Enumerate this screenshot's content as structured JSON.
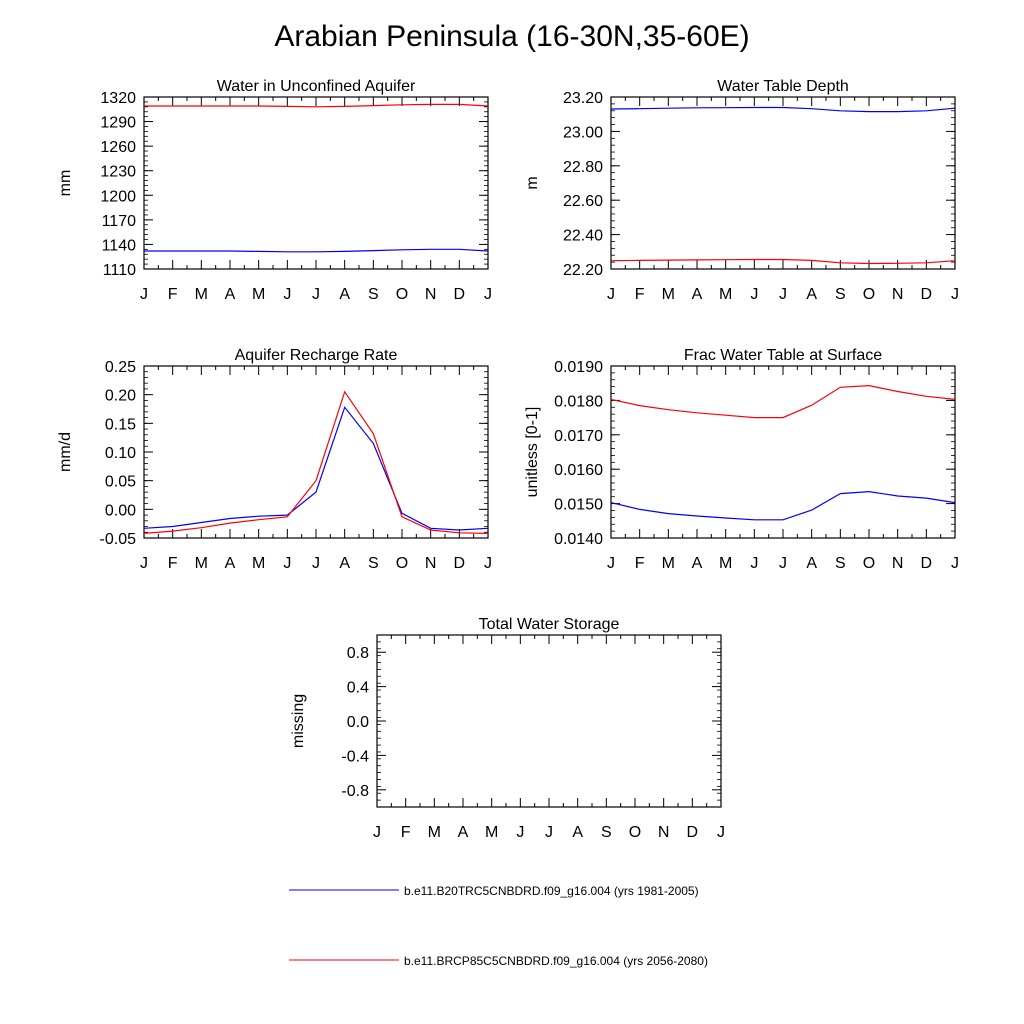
{
  "title": "Arabian Peninsula (16-30N,35-60E)",
  "colors": {
    "series_1": "#0000ff",
    "series_2": "#ff0000",
    "axis": "#000000"
  },
  "legend": [
    {
      "label": "b.e11.B20TRC5CNBDRD.f09_g16.004 (yrs 1981-2005)",
      "color": "#0000ff"
    },
    {
      "label": "b.e11.BRCP85C5CNBDRD.f09_g16.004 (yrs 2056-2080)",
      "color": "#ff0000"
    }
  ],
  "chart_data": [
    {
      "id": "unconfined",
      "type": "line",
      "title": "Water in Unconfined Aquifer",
      "ylabel": "mm",
      "xlabel": "",
      "categories": [
        "J",
        "F",
        "M",
        "A",
        "M",
        "J",
        "J",
        "A",
        "S",
        "O",
        "N",
        "D",
        "J"
      ],
      "yticks": [
        "1320",
        "1290",
        "1260",
        "1230",
        "1200",
        "1170",
        "1140",
        "1110"
      ],
      "ylim": [
        1110,
        1320
      ],
      "series": [
        {
          "name": "b.e11.B20TRC5CNBDRD.f09_g16.004 (yrs 1981-2005)",
          "values": [
            1132,
            1132,
            1132,
            1132,
            1131.5,
            1131,
            1131,
            1131.5,
            1132.5,
            1133.5,
            1134,
            1134,
            1132
          ]
        },
        {
          "name": "b.e11.BRCP85C5CNBDRD.f09_g16.004 (yrs 2056-2080)",
          "values": [
            1309,
            1309,
            1309,
            1309,
            1309,
            1308.5,
            1308,
            1308.5,
            1309.5,
            1310.5,
            1311,
            1311,
            1309
          ]
        }
      ]
    },
    {
      "id": "depth",
      "type": "line",
      "title": "Water Table Depth",
      "ylabel": "m",
      "xlabel": "",
      "categories": [
        "J",
        "F",
        "M",
        "A",
        "M",
        "J",
        "J",
        "A",
        "S",
        "O",
        "N",
        "D",
        "J"
      ],
      "yticks": [
        "23.20",
        "23.00",
        "22.80",
        "22.60",
        "22.40",
        "22.20"
      ],
      "ylim": [
        22.2,
        23.2
      ],
      "series": [
        {
          "name": "b.e11.B20TRC5CNBDRD.f09_g16.004 (yrs 1981-2005)",
          "values": [
            23.13,
            23.132,
            23.135,
            23.137,
            23.138,
            23.139,
            23.139,
            23.132,
            23.12,
            23.115,
            23.115,
            23.12,
            23.135
          ]
        },
        {
          "name": "b.e11.BRCP85C5CNBDRD.f09_g16.004 (yrs 2056-2080)",
          "values": [
            22.248,
            22.25,
            22.252,
            22.253,
            22.254,
            22.255,
            22.255,
            22.25,
            22.236,
            22.232,
            22.233,
            22.236,
            22.248
          ]
        }
      ]
    },
    {
      "id": "recharge",
      "type": "line",
      "title": "Aquifer Recharge Rate",
      "ylabel": "mm/d",
      "xlabel": "",
      "categories": [
        "J",
        "F",
        "M",
        "A",
        "M",
        "J",
        "J",
        "A",
        "S",
        "O",
        "N",
        "D",
        "J"
      ],
      "yticks": [
        "0.25",
        "0.20",
        "0.15",
        "0.10",
        "0.05",
        "0.00",
        "-0.05"
      ],
      "ylim": [
        -0.05,
        0.25
      ],
      "series": [
        {
          "name": "b.e11.B20TRC5CNBDRD.f09_g16.004 (yrs 1981-2005)",
          "values": [
            -0.033,
            -0.03,
            -0.023,
            -0.016,
            -0.012,
            -0.01,
            0.03,
            0.178,
            0.115,
            -0.007,
            -0.033,
            -0.036,
            -0.033
          ]
        },
        {
          "name": "b.e11.BRCP85C5CNBDRD.f09_g16.004 (yrs 2056-2080)",
          "values": [
            -0.042,
            -0.038,
            -0.032,
            -0.024,
            -0.018,
            -0.013,
            0.05,
            0.205,
            0.132,
            -0.013,
            -0.036,
            -0.041,
            -0.042
          ]
        }
      ]
    },
    {
      "id": "frac",
      "type": "line",
      "title": "Frac Water Table at Surface",
      "ylabel": "unitless [0-1]",
      "xlabel": "",
      "categories": [
        "J",
        "F",
        "M",
        "A",
        "M",
        "J",
        "J",
        "A",
        "S",
        "O",
        "N",
        "D",
        "J"
      ],
      "yticks": [
        "0.0190",
        "0.0180",
        "0.0170",
        "0.0160",
        "0.0150",
        "0.0140"
      ],
      "ylim": [
        0.014,
        0.019
      ],
      "series": [
        {
          "name": "b.e11.B20TRC5CNBDRD.f09_g16.004 (yrs 1981-2005)",
          "values": [
            0.01503,
            0.01483,
            0.01471,
            0.01464,
            0.01458,
            0.01453,
            0.01453,
            0.01481,
            0.01529,
            0.01535,
            0.01522,
            0.01516,
            0.01503
          ]
        },
        {
          "name": "b.e11.BRCP85C5CNBDRD.f09_g16.004 (yrs 2056-2080)",
          "values": [
            0.01803,
            0.01785,
            0.01773,
            0.01764,
            0.01757,
            0.0175,
            0.0175,
            0.01786,
            0.01838,
            0.01843,
            0.01826,
            0.01812,
            0.01803
          ]
        }
      ]
    },
    {
      "id": "total",
      "type": "line",
      "title": "Total Water Storage",
      "ylabel": "missing",
      "xlabel": "",
      "categories": [
        "J",
        "F",
        "M",
        "A",
        "M",
        "J",
        "J",
        "A",
        "S",
        "O",
        "N",
        "D",
        "J"
      ],
      "yticks": [
        "0.8",
        "0.4",
        "0.0",
        "-0.4",
        "-0.8"
      ],
      "ylim": [
        -1.0,
        1.0
      ],
      "series": []
    }
  ]
}
